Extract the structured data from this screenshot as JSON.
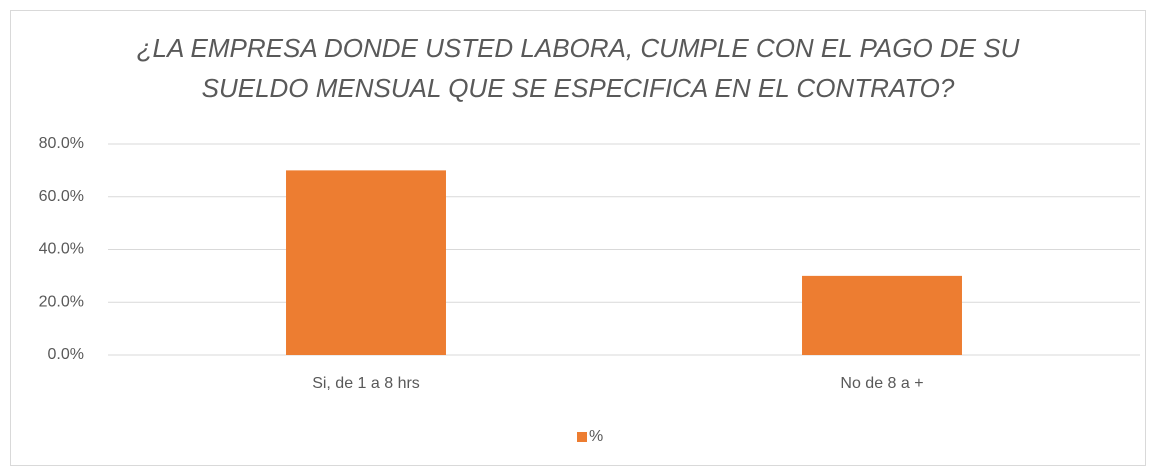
{
  "chart_data": {
    "type": "bar",
    "title": [
      "¿LA EMPRESA DONDE USTED LABORA, CUMPLE CON EL PAGO DE SU",
      "SUELDO MENSUAL QUE SE ESPECIFICA EN EL CONTRATO?"
    ],
    "categories": [
      "Si, de 1 a 8 hrs",
      "No de 8 a +"
    ],
    "series": [
      {
        "name": "%",
        "color": "#ed7d31",
        "values": [
          70,
          30
        ]
      }
    ],
    "ylim": [
      0,
      80
    ],
    "yticks": [
      {
        "value": 0,
        "label": "0.0%"
      },
      {
        "value": 20,
        "label": "20.0%"
      },
      {
        "value": 40,
        "label": "40.0%"
      },
      {
        "value": 60,
        "label": "60.0%"
      },
      {
        "value": 80,
        "label": "80.0%"
      }
    ],
    "grid": true,
    "legend": "bottom"
  }
}
